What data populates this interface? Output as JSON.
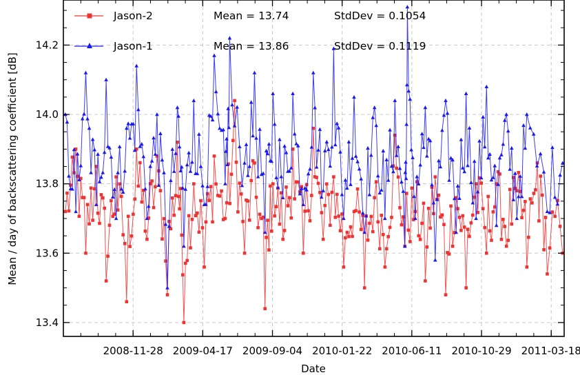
{
  "chart_data": {
    "type": "line",
    "title": "",
    "xlabel": "Date",
    "ylabel": "Mean / day of backscattering coefficient [dB]",
    "x_range": [
      "2008-07-11",
      "2011-04-13"
    ],
    "ylim": [
      13.36,
      14.33
    ],
    "x_ticks": [
      "2008-11-28",
      "2009-04-17",
      "2009-09-04",
      "2010-01-22",
      "2010-06-11",
      "2010-10-29",
      "2011-03-18"
    ],
    "y_ticks": [
      "13.4",
      "13.6",
      "13.8",
      "14.0",
      "14.2"
    ],
    "grid": true,
    "legend_position": "top-left",
    "series": [
      {
        "name": "Jason-2",
        "color": "#ee3333",
        "marker": "square",
        "mean_label": "Mean = 13.74",
        "stddev_label": "StdDev = 0.1054",
        "sampled_points": [
          [
            "2008-07-15",
            13.72
          ],
          [
            "2008-08-05",
            13.9
          ],
          [
            "2008-08-25",
            13.6
          ],
          [
            "2008-09-15",
            13.85
          ],
          [
            "2008-10-05",
            13.52
          ],
          [
            "2008-10-25",
            13.82
          ],
          [
            "2008-11-15",
            13.46
          ],
          [
            "2008-12-05",
            13.9
          ],
          [
            "2008-12-26",
            13.64
          ],
          [
            "2009-01-15",
            13.88
          ],
          [
            "2009-02-05",
            13.48
          ],
          [
            "2009-02-25",
            13.92
          ],
          [
            "2009-03-10",
            13.4
          ],
          [
            "2009-03-30",
            13.8
          ],
          [
            "2009-04-20",
            13.56
          ],
          [
            "2009-05-10",
            13.88
          ],
          [
            "2009-06-01",
            13.7
          ],
          [
            "2009-06-20",
            14.04
          ],
          [
            "2009-07-10",
            13.6
          ],
          [
            "2009-07-30",
            13.86
          ],
          [
            "2009-08-20",
            13.44
          ],
          [
            "2009-09-05",
            13.8
          ],
          [
            "2009-09-25",
            13.64
          ],
          [
            "2009-10-15",
            13.9
          ],
          [
            "2009-11-05",
            13.6
          ],
          [
            "2009-11-25",
            13.96
          ],
          [
            "2009-12-15",
            13.64
          ],
          [
            "2010-01-05",
            13.82
          ],
          [
            "2010-01-25",
            13.56
          ],
          [
            "2010-02-15",
            13.72
          ],
          [
            "2010-03-08",
            13.5
          ],
          [
            "2010-03-28",
            13.76
          ],
          [
            "2010-04-18",
            13.56
          ],
          [
            "2010-05-08",
            13.94
          ],
          [
            "2010-05-28",
            13.62
          ],
          [
            "2010-06-18",
            13.72
          ],
          [
            "2010-07-08",
            13.52
          ],
          [
            "2010-07-28",
            13.82
          ],
          [
            "2010-08-18",
            13.48
          ],
          [
            "2010-09-08",
            13.76
          ],
          [
            "2010-09-28",
            13.5
          ],
          [
            "2010-10-18",
            13.8
          ],
          [
            "2010-11-08",
            13.6
          ],
          [
            "2010-11-28",
            13.8
          ],
          [
            "2010-12-18",
            13.62
          ],
          [
            "2011-01-08",
            13.78
          ],
          [
            "2011-01-28",
            13.56
          ],
          [
            "2011-02-18",
            13.86
          ],
          [
            "2011-03-10",
            13.54
          ],
          [
            "2011-04-10",
            13.6
          ]
        ]
      },
      {
        "name": "Jason-1",
        "color": "#1a1aee",
        "marker": "triangle",
        "mean_label": "Mean = 13.86",
        "stddev_label": "StdDev = 0.1119",
        "sampled_points": [
          [
            "2008-07-15",
            14.0
          ],
          [
            "2008-08-05",
            13.72
          ],
          [
            "2008-08-25",
            14.12
          ],
          [
            "2008-09-15",
            13.74
          ],
          [
            "2008-10-05",
            14.1
          ],
          [
            "2008-10-25",
            13.7
          ],
          [
            "2008-11-15",
            13.96
          ],
          [
            "2008-12-05",
            14.14
          ],
          [
            "2008-12-26",
            13.7
          ],
          [
            "2009-01-15",
            14.0
          ],
          [
            "2009-02-05",
            13.5
          ],
          [
            "2009-02-25",
            14.02
          ],
          [
            "2009-03-10",
            13.62
          ],
          [
            "2009-03-30",
            14.04
          ],
          [
            "2009-04-20",
            13.74
          ],
          [
            "2009-05-10",
            14.17
          ],
          [
            "2009-06-01",
            13.8
          ],
          [
            "2009-06-10",
            14.22
          ],
          [
            "2009-07-10",
            13.86
          ],
          [
            "2009-07-30",
            14.12
          ],
          [
            "2009-08-20",
            13.66
          ],
          [
            "2009-09-05",
            14.06
          ],
          [
            "2009-09-25",
            13.76
          ],
          [
            "2009-10-15",
            14.06
          ],
          [
            "2009-11-05",
            13.74
          ],
          [
            "2009-11-25",
            14.12
          ],
          [
            "2009-12-15",
            13.78
          ],
          [
            "2010-01-05",
            14.19
          ],
          [
            "2010-01-25",
            13.7
          ],
          [
            "2010-02-15",
            14.05
          ],
          [
            "2010-03-08",
            13.66
          ],
          [
            "2010-03-28",
            14.02
          ],
          [
            "2010-04-18",
            13.7
          ],
          [
            "2010-05-08",
            14.04
          ],
          [
            "2010-05-28",
            13.62
          ],
          [
            "2010-06-02",
            14.31
          ],
          [
            "2010-06-18",
            13.7
          ],
          [
            "2010-07-08",
            14.02
          ],
          [
            "2010-07-28",
            13.58
          ],
          [
            "2010-08-18",
            14.04
          ],
          [
            "2010-09-08",
            13.66
          ],
          [
            "2010-09-28",
            14.06
          ],
          [
            "2010-10-18",
            13.7
          ],
          [
            "2010-11-08",
            14.08
          ],
          [
            "2010-11-28",
            13.68
          ],
          [
            "2010-12-18",
            14.0
          ],
          [
            "2011-01-08",
            13.7
          ],
          [
            "2011-01-28",
            14.0
          ],
          [
            "2011-03-10",
            13.72
          ],
          [
            "2011-04-10",
            13.86
          ]
        ]
      }
    ]
  }
}
